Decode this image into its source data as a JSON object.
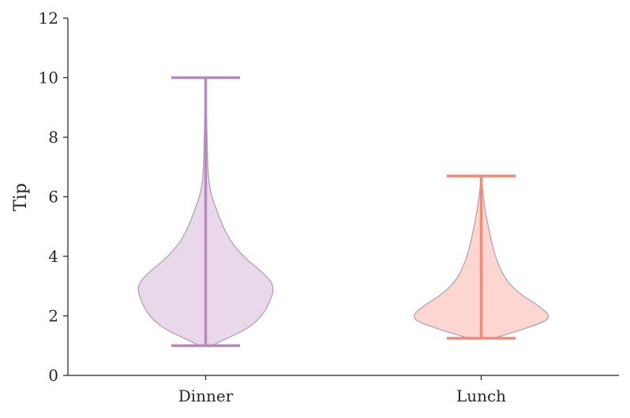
{
  "chart_data": {
    "type": "violin",
    "title": "",
    "xlabel": "",
    "ylabel": "Tip",
    "ylim": [
      0,
      12
    ],
    "yticks": [
      0,
      2,
      4,
      6,
      8,
      10,
      12
    ],
    "grid": false,
    "categories": [
      "Dinner",
      "Lunch"
    ],
    "series": [
      {
        "category": "Dinner",
        "min": 1.0,
        "max": 10.0,
        "color": "#bf85bf",
        "fill": "#e8d8e9",
        "density_profile": [
          [
            1.0,
            0.09
          ],
          [
            1.3,
            0.36
          ],
          [
            1.6,
            0.63
          ],
          [
            2.0,
            0.82
          ],
          [
            2.5,
            0.94
          ],
          [
            3.0,
            1.0
          ],
          [
            3.4,
            0.86
          ],
          [
            4.0,
            0.54
          ],
          [
            4.6,
            0.33
          ],
          [
            5.4,
            0.18
          ],
          [
            6.2,
            0.06
          ],
          [
            7.0,
            0.03
          ],
          [
            8.0,
            0.02
          ],
          [
            9.0,
            0.01
          ],
          [
            10.0,
            0.0
          ]
        ]
      },
      {
        "category": "Lunch",
        "min": 1.25,
        "max": 6.7,
        "color": "#f28a7a",
        "fill": "#fdd6d1",
        "density_profile": [
          [
            1.25,
            0.18
          ],
          [
            1.5,
            0.55
          ],
          [
            1.8,
            0.92
          ],
          [
            2.0,
            1.0
          ],
          [
            2.3,
            0.86
          ],
          [
            2.8,
            0.52
          ],
          [
            3.3,
            0.33
          ],
          [
            4.0,
            0.2
          ],
          [
            4.8,
            0.12
          ],
          [
            5.5,
            0.06
          ],
          [
            6.2,
            0.02
          ],
          [
            6.7,
            0.0
          ]
        ]
      }
    ]
  }
}
